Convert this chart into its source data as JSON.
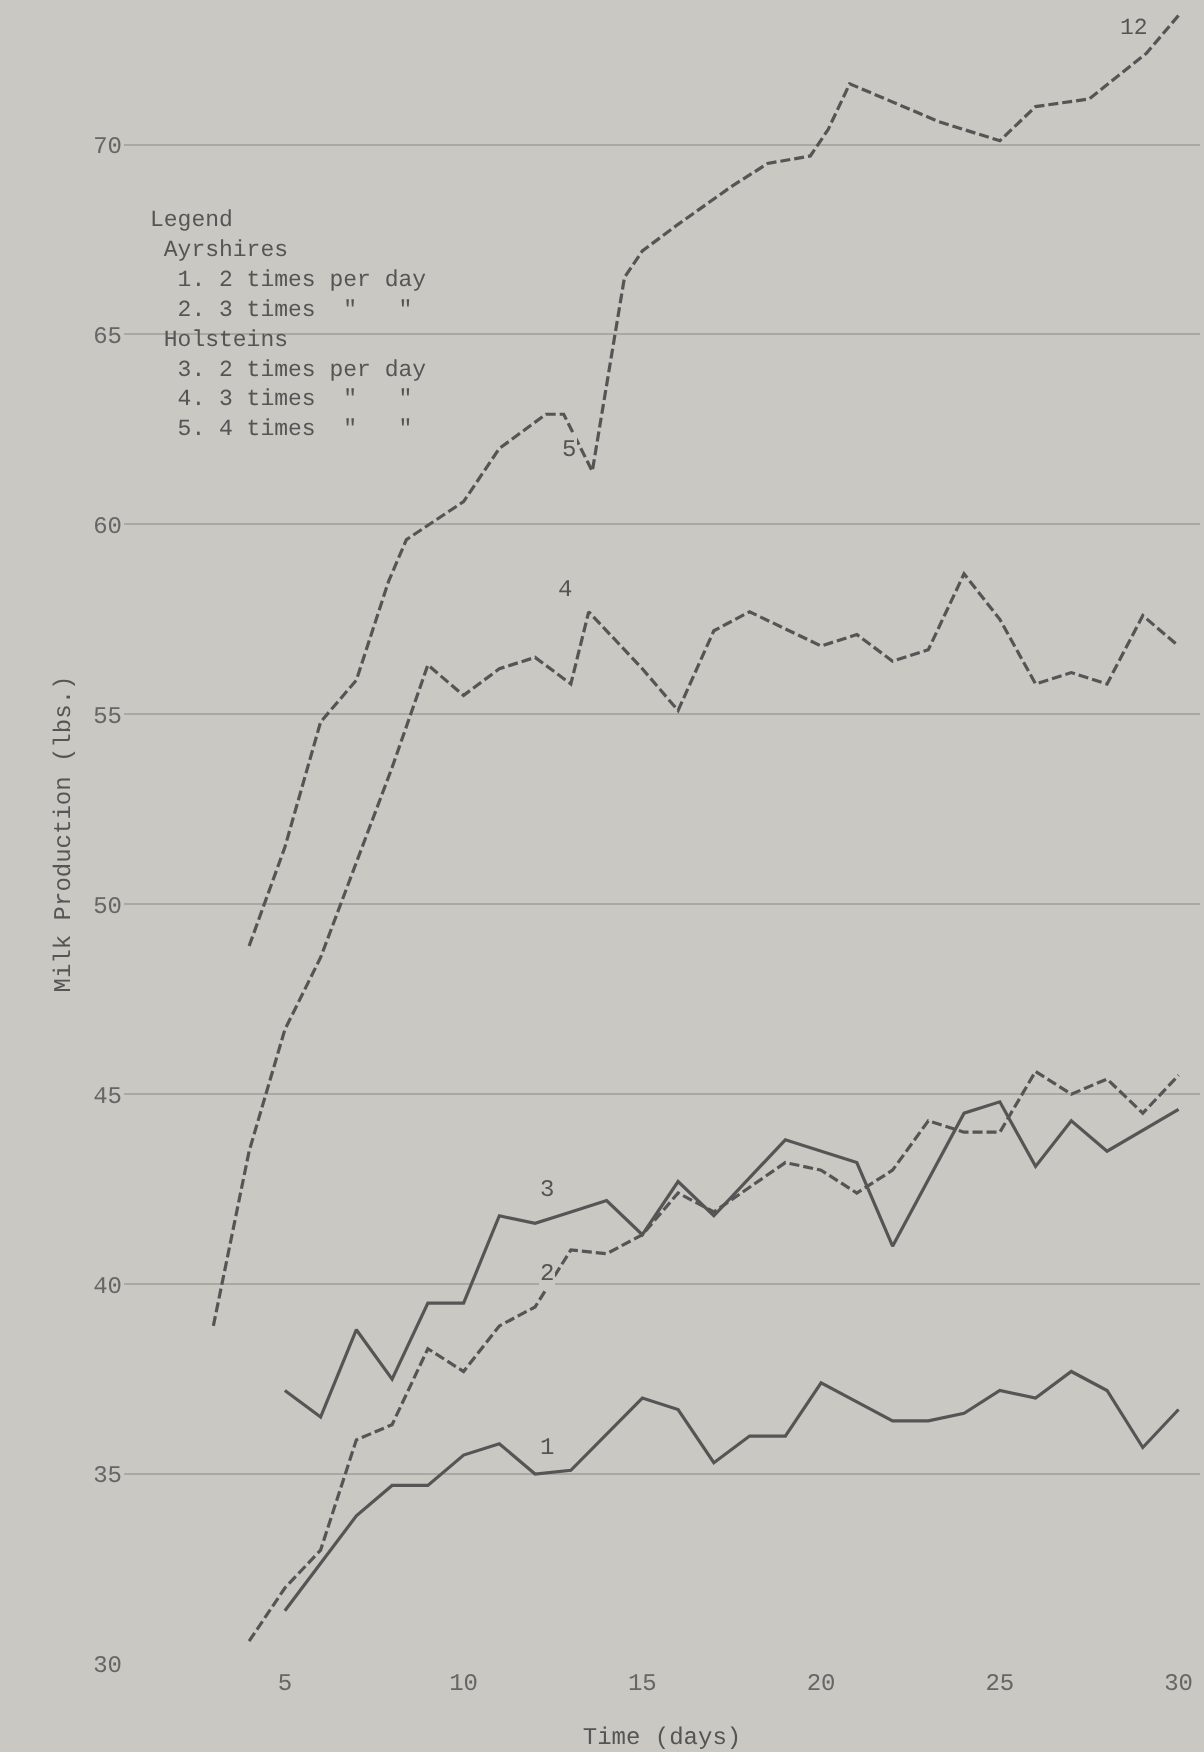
{
  "chart_data": {
    "type": "line",
    "xlabel": "Time (days)",
    "ylabel": "Milk Production (lbs.)",
    "xlim": [
      0.5,
      30.6
    ],
    "xticks": [
      5,
      10,
      15,
      20,
      25,
      30
    ],
    "ylim": [
      30,
      73.7
    ],
    "yticks": [
      30,
      35,
      40,
      45,
      50,
      55,
      60,
      65,
      70
    ],
    "grid": "y",
    "annotations": [
      "Legend\n Ayrshires\n  1. 2 times per day\n  2. 3 times  \"   \"\n Holsteins\n  3. 2 times per day\n  4. 3 times  \"   \"\n  5. 4 times  \"   \"",
      "12"
    ],
    "series": [
      {
        "name": "1",
        "color": "#555555",
        "line_style": "solid",
        "x": [
          5,
          7,
          8,
          9,
          10,
          11,
          12,
          13,
          15,
          16,
          17,
          18,
          19,
          20,
          21,
          22,
          23,
          24,
          25,
          26,
          27,
          28,
          29,
          30
        ],
        "values": [
          31.4,
          33.9,
          34.7,
          34.7,
          35.5,
          35.8,
          35.0,
          35.1,
          37.0,
          36.7,
          35.3,
          36.0,
          36.0,
          37.4,
          36.9,
          36.4,
          36.4,
          36.6,
          37.2,
          37.0,
          37.7,
          37.2,
          35.7,
          36.7
        ]
      },
      {
        "name": "2",
        "color": "#555555",
        "line_style": "dashed",
        "x": [
          4,
          5,
          6,
          7,
          8,
          9,
          10,
          11,
          12,
          13,
          14,
          15,
          16,
          17,
          19,
          20,
          21,
          22,
          23,
          24,
          25,
          26,
          27,
          28,
          29,
          30
        ],
        "values": [
          30.6,
          32.0,
          33.0,
          35.9,
          36.3,
          38.3,
          37.7,
          38.9,
          39.4,
          40.9,
          40.8,
          41.3,
          42.4,
          41.9,
          43.2,
          43.0,
          42.4,
          43.0,
          44.3,
          44.0,
          44.0,
          45.6,
          45.0,
          45.4,
          44.5,
          45.5
        ]
      },
      {
        "name": "3",
        "color": "#555555",
        "line_style": "solid",
        "x": [
          5,
          6,
          7,
          8,
          9,
          10,
          11,
          12,
          13,
          14,
          15,
          16,
          17,
          19,
          21,
          22,
          24,
          25,
          26,
          27,
          28,
          30
        ],
        "values": [
          37.2,
          36.5,
          38.8,
          37.5,
          39.5,
          39.5,
          41.8,
          41.6,
          41.9,
          42.2,
          41.3,
          42.7,
          41.8,
          43.8,
          43.2,
          41.0,
          44.5,
          44.8,
          43.1,
          44.3,
          43.5,
          44.6
        ]
      },
      {
        "name": "4",
        "color": "#555555",
        "line_style": "dashed",
        "x": [
          3,
          4,
          5,
          6,
          7,
          8,
          9,
          10,
          11,
          12,
          13,
          13.5,
          14,
          15,
          16,
          17,
          18,
          20,
          21,
          22,
          23,
          24,
          25,
          26,
          27,
          28,
          29,
          30
        ],
        "values": [
          38.9,
          43.5,
          46.7,
          48.6,
          51.1,
          53.6,
          56.3,
          55.5,
          56.2,
          56.5,
          55.8,
          57.7,
          57.2,
          56.2,
          55.1,
          57.2,
          57.7,
          56.8,
          57.1,
          56.4,
          56.7,
          58.7,
          57.5,
          55.8,
          56.1,
          55.8,
          57.6,
          56.8
        ]
      },
      {
        "name": "5",
        "color": "#555555",
        "line_style": "dashed",
        "x": [
          4,
          5,
          6,
          7,
          7.9,
          8.4,
          10,
          11,
          12.3,
          12.8,
          13.6,
          14.5,
          15,
          16,
          17.5,
          18.5,
          19.7,
          20.2,
          20.8,
          23.3,
          25,
          26,
          27.5,
          29.1,
          30
        ],
        "values": [
          48.9,
          51.5,
          54.8,
          55.9,
          58.5,
          59.6,
          60.6,
          62.0,
          62.9,
          62.9,
          61.4,
          66.5,
          67.2,
          67.9,
          68.9,
          69.5,
          69.7,
          70.4,
          71.6,
          70.6,
          70.1,
          71.0,
          71.2,
          72.4,
          73.4
        ]
      }
    ]
  }
}
